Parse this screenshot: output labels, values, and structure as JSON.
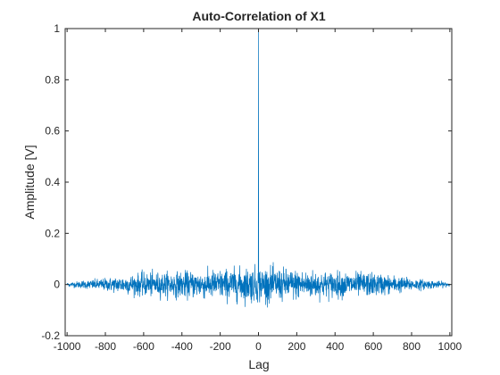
{
  "chart_data": {
    "type": "line",
    "title": "Auto-Correlation of X1",
    "xlabel": "Lag",
    "ylabel": "Amplitude [V]",
    "xlim": [
      -1010,
      1010
    ],
    "ylim": [
      -0.2,
      1
    ],
    "xticks": [
      -1000,
      -800,
      -600,
      -400,
      -200,
      0,
      200,
      400,
      600,
      800,
      1000
    ],
    "yticks": [
      -0.2,
      0,
      0.2,
      0.4,
      0.6,
      0.8,
      1
    ],
    "grid": false,
    "legend": "none",
    "color": "#0072BD",
    "series": [
      {
        "x_start": -1000,
        "x_end": 1000,
        "x_step": 1,
        "peak": {
          "x": 0,
          "y": 1
        },
        "noise_envelope": [
          {
            "x": -1000,
            "max_abs": 0.01
          },
          {
            "x": -800,
            "max_abs": 0.03
          },
          {
            "x": -600,
            "max_abs": 0.055
          },
          {
            "x": -400,
            "max_abs": 0.06
          },
          {
            "x": -200,
            "max_abs": 0.07
          },
          {
            "x": 0,
            "max_abs": 0.085
          },
          {
            "x": 200,
            "max_abs": 0.07
          },
          {
            "x": 400,
            "max_abs": 0.06
          },
          {
            "x": 600,
            "max_abs": 0.055
          },
          {
            "x": 800,
            "max_abs": 0.03
          },
          {
            "x": 1000,
            "max_abs": 0.01
          }
        ]
      }
    ]
  }
}
